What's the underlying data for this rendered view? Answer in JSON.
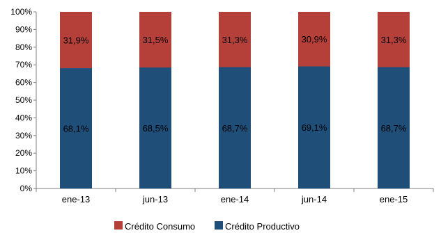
{
  "chart_data": {
    "type": "bar",
    "stacked": true,
    "categories": [
      "ene-13",
      "jun-13",
      "ene-14",
      "jun-14",
      "ene-15"
    ],
    "series": [
      {
        "name": "Crédito Productivo",
        "color": "#1f4e79",
        "values": [
          68.1,
          68.5,
          68.7,
          69.1,
          68.7
        ],
        "labels": [
          "68,1%",
          "68,5%",
          "68,7%",
          "69,1%",
          "68,7%"
        ]
      },
      {
        "name": "Crédito Consumo",
        "color": "#b5403a",
        "values": [
          31.9,
          31.5,
          31.3,
          30.9,
          31.3
        ],
        "labels": [
          "31,9%",
          "31,5%",
          "31,3%",
          "30,9%",
          "31,3%"
        ]
      }
    ],
    "ylim": [
      0,
      100
    ],
    "yticks": [
      "0%",
      "10%",
      "20%",
      "30%",
      "40%",
      "50%",
      "60%",
      "70%",
      "80%",
      "90%",
      "100%"
    ],
    "grid": false,
    "legend_position": "bottom",
    "legend_order": [
      "Crédito Consumo",
      "Crédito Productivo"
    ]
  }
}
